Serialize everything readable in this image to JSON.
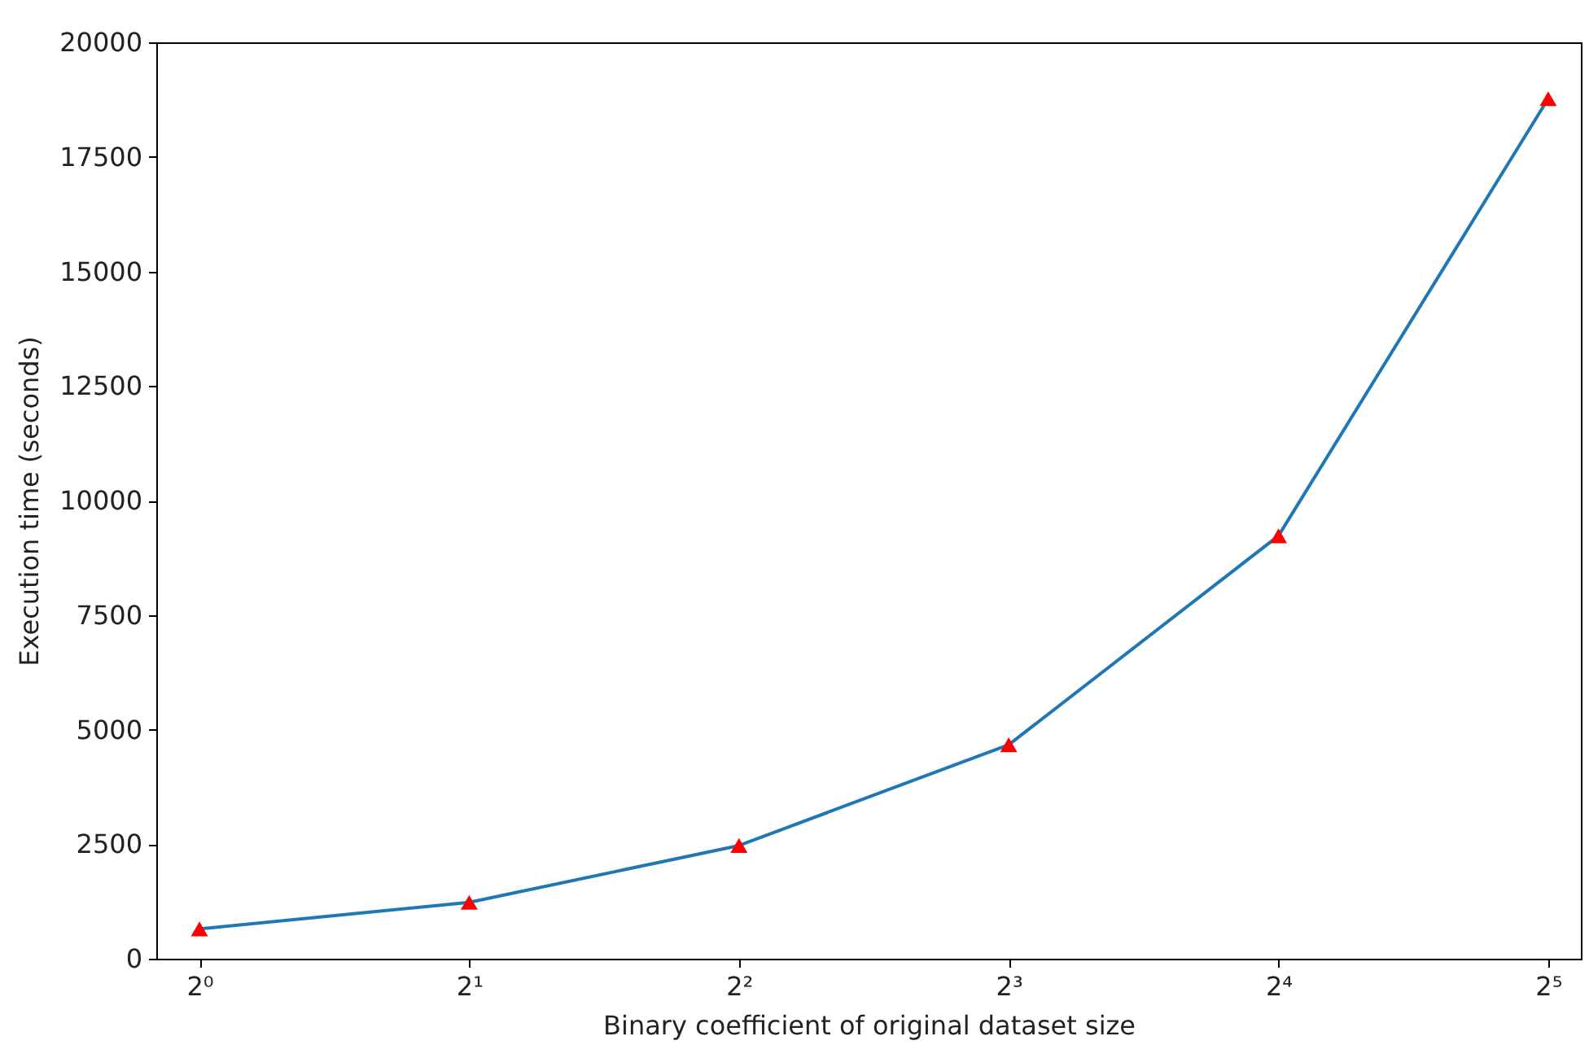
{
  "chart_data": {
    "type": "line",
    "xlabel": "Binary coefficient of original dataset size",
    "ylabel": "Execution time (seconds)",
    "x": [
      1,
      2,
      4,
      8,
      16,
      32
    ],
    "series": [
      {
        "color": "#1f77b4",
        "values": [
          650,
          1230,
          2470,
          4670,
          9230,
          18770
        ],
        "marker": "none"
      },
      {
        "type": "scatter",
        "color": "#ff0000",
        "values": [
          650,
          1230,
          2470,
          4670,
          9230,
          18770
        ],
        "marker": "triangle"
      }
    ],
    "log": "x",
    "xlim": [
      0.895,
      34.8
    ],
    "xticks": [
      {
        "value": 1,
        "label": "2⁰"
      },
      {
        "value": 2,
        "label": "2¹"
      },
      {
        "value": 4,
        "label": "2²"
      },
      {
        "value": 8,
        "label": "2³"
      },
      {
        "value": 16,
        "label": "2⁴"
      },
      {
        "value": 32,
        "label": "2⁵"
      }
    ],
    "ylim": [
      0,
      20000
    ],
    "yticks": [
      0,
      2500,
      5000,
      7500,
      10000,
      12500,
      15000,
      17500,
      20000
    ],
    "grid": false
  }
}
